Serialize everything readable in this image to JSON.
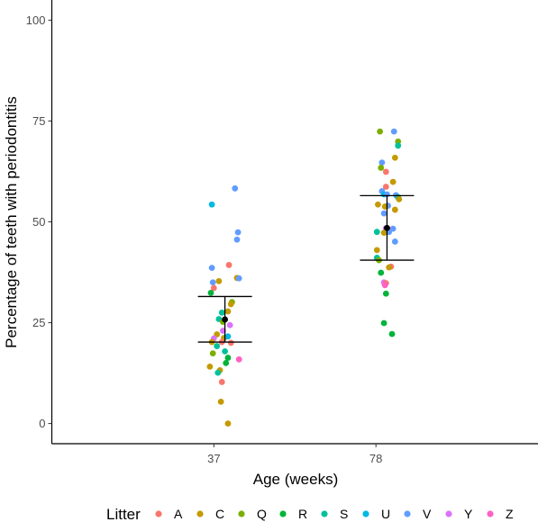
{
  "chart_data": {
    "type": "scatter",
    "title": "",
    "xlabel": "Age (weeks)",
    "ylabel": "Percentage of teeth with periodontitis",
    "categories": [
      "37",
      "78"
    ],
    "ylim": [
      -5,
      105
    ],
    "yticks": [
      0,
      25,
      50,
      75,
      100
    ],
    "grid": false,
    "legend": {
      "title": "Litter",
      "placement": "bottom",
      "entries": [
        {
          "name": "A",
          "color": "#F8766D"
        },
        {
          "name": "C",
          "color": "#C49A00"
        },
        {
          "name": "Q",
          "color": "#7CAE00"
        },
        {
          "name": "R",
          "color": "#00B33A"
        },
        {
          "name": "S",
          "color": "#00C19A"
        },
        {
          "name": "U",
          "color": "#00B9E3"
        },
        {
          "name": "V",
          "color": "#619CFF"
        },
        {
          "name": "Y",
          "color": "#DB72FB"
        },
        {
          "name": "Z",
          "color": "#FF61C3"
        }
      ]
    },
    "summary": [
      {
        "category": "37",
        "mean": 25.8,
        "lower": 20.2,
        "upper": 31.5
      },
      {
        "category": "78",
        "mean": 48.5,
        "lower": 40.5,
        "upper": 56.5
      }
    ],
    "points": [
      {
        "category": "37",
        "jitter": -0.02,
        "y": 54.3,
        "litter": "U"
      },
      {
        "category": "37",
        "jitter": 0.21,
        "y": 58.3,
        "litter": "V"
      },
      {
        "category": "37",
        "jitter": 0.24,
        "y": 47.4,
        "litter": "V"
      },
      {
        "category": "37",
        "jitter": 0.23,
        "y": 45.6,
        "litter": "V"
      },
      {
        "category": "37",
        "jitter": 0.15,
        "y": 39.3,
        "litter": "A"
      },
      {
        "category": "37",
        "jitter": -0.02,
        "y": 38.6,
        "litter": "V"
      },
      {
        "category": "37",
        "jitter": 0.23,
        "y": 36.1,
        "litter": "C"
      },
      {
        "category": "37",
        "jitter": 0.25,
        "y": 36.0,
        "litter": "V"
      },
      {
        "category": "37",
        "jitter": 0.05,
        "y": 35.3,
        "litter": "C"
      },
      {
        "category": "37",
        "jitter": -0.01,
        "y": 35.0,
        "litter": "V"
      },
      {
        "category": "37",
        "jitter": 0.0,
        "y": 33.6,
        "litter": "A"
      },
      {
        "category": "37",
        "jitter": -0.03,
        "y": 32.4,
        "litter": "R"
      },
      {
        "category": "37",
        "jitter": 0.18,
        "y": 30.1,
        "litter": "Q"
      },
      {
        "category": "37",
        "jitter": 0.17,
        "y": 29.6,
        "litter": "C"
      },
      {
        "category": "37",
        "jitter": 0.14,
        "y": 27.8,
        "litter": "C"
      },
      {
        "category": "37",
        "jitter": 0.08,
        "y": 27.5,
        "litter": "S"
      },
      {
        "category": "37",
        "jitter": 0.05,
        "y": 25.9,
        "litter": "S"
      },
      {
        "category": "37",
        "jitter": 0.09,
        "y": 25.2,
        "litter": "Q"
      },
      {
        "category": "37",
        "jitter": 0.16,
        "y": 24.4,
        "litter": "Y"
      },
      {
        "category": "37",
        "jitter": 0.09,
        "y": 23.0,
        "litter": "Y"
      },
      {
        "category": "37",
        "jitter": 0.03,
        "y": 22.1,
        "litter": "C"
      },
      {
        "category": "37",
        "jitter": 0.1,
        "y": 21.2,
        "litter": "C"
      },
      {
        "category": "37",
        "jitter": 0.14,
        "y": 21.6,
        "litter": "U"
      },
      {
        "category": "37",
        "jitter": 0.0,
        "y": 21.1,
        "litter": "Y"
      },
      {
        "category": "37",
        "jitter": -0.02,
        "y": 20.2,
        "litter": "C"
      },
      {
        "category": "37",
        "jitter": 0.17,
        "y": 20.0,
        "litter": "A"
      },
      {
        "category": "37",
        "jitter": 0.08,
        "y": 20.2,
        "litter": "A"
      },
      {
        "category": "37",
        "jitter": 0.03,
        "y": 19.2,
        "litter": "S"
      },
      {
        "category": "37",
        "jitter": -0.01,
        "y": 17.4,
        "litter": "Q"
      },
      {
        "category": "37",
        "jitter": 0.11,
        "y": 17.9,
        "litter": "S"
      },
      {
        "category": "37",
        "jitter": 0.25,
        "y": 15.9,
        "litter": "Z"
      },
      {
        "category": "37",
        "jitter": 0.14,
        "y": 16.3,
        "litter": "R"
      },
      {
        "category": "37",
        "jitter": 0.12,
        "y": 15.0,
        "litter": "R"
      },
      {
        "category": "37",
        "jitter": -0.04,
        "y": 14.1,
        "litter": "C"
      },
      {
        "category": "37",
        "jitter": 0.06,
        "y": 13.2,
        "litter": "C"
      },
      {
        "category": "37",
        "jitter": 0.04,
        "y": 12.6,
        "litter": "S"
      },
      {
        "category": "37",
        "jitter": 0.08,
        "y": 10.3,
        "litter": "A"
      },
      {
        "category": "37",
        "jitter": 0.07,
        "y": 5.4,
        "litter": "C"
      },
      {
        "category": "37",
        "jitter": 0.14,
        "y": 0.0,
        "litter": "C"
      },
      {
        "category": "78",
        "jitter": 0.04,
        "y": 72.4,
        "litter": "Q"
      },
      {
        "category": "78",
        "jitter": 0.18,
        "y": 72.4,
        "litter": "V"
      },
      {
        "category": "78",
        "jitter": 0.22,
        "y": 69.9,
        "litter": "Q"
      },
      {
        "category": "78",
        "jitter": 0.22,
        "y": 68.9,
        "litter": "S"
      },
      {
        "category": "78",
        "jitter": 0.19,
        "y": 65.9,
        "litter": "C"
      },
      {
        "category": "78",
        "jitter": 0.06,
        "y": 64.7,
        "litter": "V"
      },
      {
        "category": "78",
        "jitter": 0.05,
        "y": 63.4,
        "litter": "Q"
      },
      {
        "category": "78",
        "jitter": 0.1,
        "y": 62.4,
        "litter": "A"
      },
      {
        "category": "78",
        "jitter": 0.17,
        "y": 59.9,
        "litter": "C"
      },
      {
        "category": "78",
        "jitter": 0.1,
        "y": 58.7,
        "litter": "A"
      },
      {
        "category": "78",
        "jitter": 0.06,
        "y": 57.6,
        "litter": "V"
      },
      {
        "category": "78",
        "jitter": 0.08,
        "y": 56.8,
        "litter": "U"
      },
      {
        "category": "78",
        "jitter": 0.11,
        "y": 56.8,
        "litter": "V"
      },
      {
        "category": "78",
        "jitter": 0.2,
        "y": 56.6,
        "litter": "V"
      },
      {
        "category": "78",
        "jitter": 0.22,
        "y": 56.1,
        "litter": "S"
      },
      {
        "category": "78",
        "jitter": 0.23,
        "y": 55.6,
        "litter": "C"
      },
      {
        "category": "78",
        "jitter": 0.02,
        "y": 54.3,
        "litter": "C"
      },
      {
        "category": "78",
        "jitter": 0.12,
        "y": 54.0,
        "litter": "V"
      },
      {
        "category": "78",
        "jitter": 0.09,
        "y": 53.8,
        "litter": "C"
      },
      {
        "category": "78",
        "jitter": 0.19,
        "y": 53.0,
        "litter": "C"
      },
      {
        "category": "78",
        "jitter": 0.08,
        "y": 52.1,
        "litter": "V"
      },
      {
        "category": "78",
        "jitter": 0.17,
        "y": 48.3,
        "litter": "V"
      },
      {
        "category": "78",
        "jitter": 0.1,
        "y": 48.4,
        "litter": "Y"
      },
      {
        "category": "78",
        "jitter": 0.12,
        "y": 48.2,
        "litter": "Y"
      },
      {
        "category": "78",
        "jitter": 0.01,
        "y": 47.5,
        "litter": "S"
      },
      {
        "category": "78",
        "jitter": 0.08,
        "y": 47.3,
        "litter": "C"
      },
      {
        "category": "78",
        "jitter": 0.13,
        "y": 47.5,
        "litter": "V"
      },
      {
        "category": "78",
        "jitter": 0.19,
        "y": 45.1,
        "litter": "V"
      },
      {
        "category": "78",
        "jitter": 0.01,
        "y": 43.0,
        "litter": "C"
      },
      {
        "category": "78",
        "jitter": 0.01,
        "y": 41.1,
        "litter": "S"
      },
      {
        "category": "78",
        "jitter": 0.03,
        "y": 40.5,
        "litter": "Q"
      },
      {
        "category": "78",
        "jitter": 0.15,
        "y": 38.9,
        "litter": "A"
      },
      {
        "category": "78",
        "jitter": 0.13,
        "y": 38.7,
        "litter": "C"
      },
      {
        "category": "78",
        "jitter": 0.05,
        "y": 37.4,
        "litter": "R"
      },
      {
        "category": "78",
        "jitter": 0.08,
        "y": 35.0,
        "litter": "Y"
      },
      {
        "category": "78",
        "jitter": 0.1,
        "y": 34.8,
        "litter": "A"
      },
      {
        "category": "78",
        "jitter": 0.09,
        "y": 34.3,
        "litter": "Z"
      },
      {
        "category": "78",
        "jitter": 0.1,
        "y": 32.2,
        "litter": "R"
      },
      {
        "category": "78",
        "jitter": 0.08,
        "y": 24.9,
        "litter": "R"
      },
      {
        "category": "78",
        "jitter": 0.16,
        "y": 22.2,
        "litter": "R"
      }
    ]
  }
}
